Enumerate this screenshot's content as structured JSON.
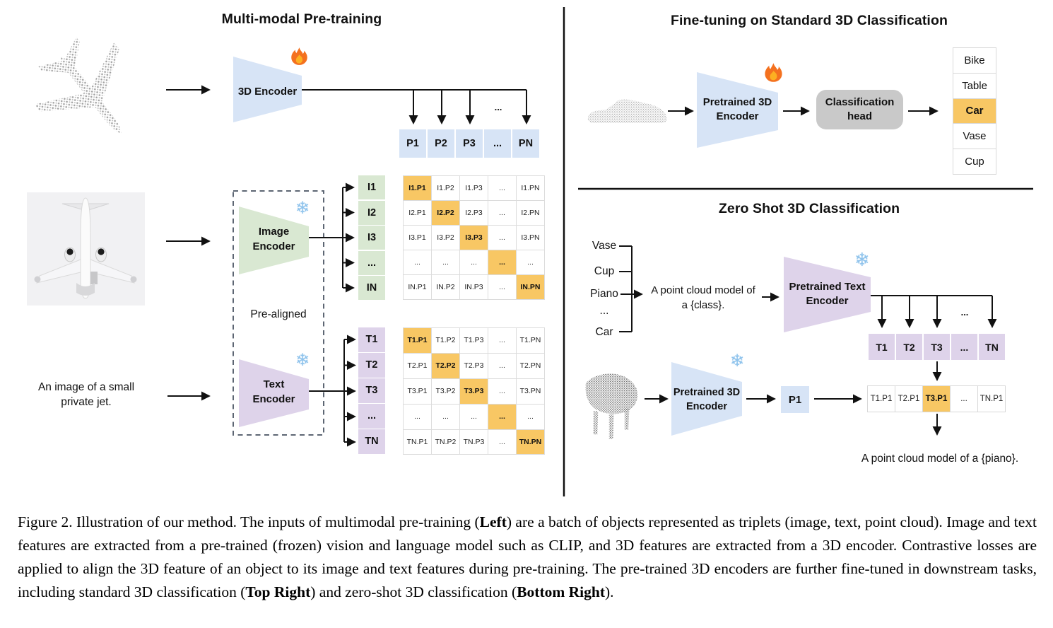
{
  "left_panel": {
    "title": "Multi-modal Pre-training",
    "encoder_3d": {
      "label": "3D Encoder"
    },
    "image_encoder": {
      "line1": "Image",
      "line2": "Encoder"
    },
    "text_encoder": {
      "line1": "Text",
      "line2": "Encoder"
    },
    "pre_aligned_label": "Pre-aligned",
    "text_input": {
      "line1": "An image of a small",
      "line2": "private jet."
    },
    "ellipsis": "...",
    "p_row": [
      "P1",
      "P2",
      "P3",
      "...",
      "PN"
    ],
    "image_rows": [
      "I1",
      "I2",
      "I3",
      "...",
      "IN"
    ],
    "text_rows": [
      "T1",
      "T2",
      "T3",
      "...",
      "TN"
    ],
    "image_matrix": [
      [
        "I1.P1",
        "I1.P2",
        "I1.P3",
        "...",
        "I1.PN"
      ],
      [
        "I2.P1",
        "I2.P2",
        "I2.P3",
        "...",
        "I2.PN"
      ],
      [
        "I3.P1",
        "I3.P2",
        "I3.P3",
        "...",
        "I3.PN"
      ],
      [
        "...",
        "...",
        "...",
        "...",
        "..."
      ],
      [
        "IN.P1",
        "IN.P2",
        "IN.P3",
        "...",
        "IN.PN"
      ]
    ],
    "text_matrix": [
      [
        "T1.P1",
        "T1.P2",
        "T1.P3",
        "...",
        "T1.PN"
      ],
      [
        "T2.P1",
        "T2.P2",
        "T2.P3",
        "...",
        "T2.PN"
      ],
      [
        "T3.P1",
        "T3.P2",
        "T3.P3",
        "...",
        "T3.PN"
      ],
      [
        "...",
        "...",
        "...",
        "...",
        "..."
      ],
      [
        "TN.P1",
        "TN.P2",
        "TN.P3",
        "...",
        "TN.PN"
      ]
    ]
  },
  "top_right_panel": {
    "title": "Fine-tuning on Standard 3D Classification",
    "encoder": {
      "line1": "Pretrained 3D",
      "line2": "Encoder"
    },
    "classification_head": {
      "line1": "Classification",
      "line2": "head"
    },
    "classes": [
      "Bike",
      "Table",
      "Car",
      "Vase",
      "Cup"
    ],
    "highlighted_class": "Car"
  },
  "bottom_right_panel": {
    "title": "Zero Shot 3D Classification",
    "class_prompts": [
      "Vase",
      "Cup",
      "Piano",
      "...",
      "Car"
    ],
    "prompt": {
      "line1": "A point cloud model of",
      "line2": "a {class}."
    },
    "text_encoder": {
      "line1": "Pretrained Text",
      "line2": "Encoder"
    },
    "encoder_3d": {
      "line1": "Pretrained 3D",
      "line2": "Encoder"
    },
    "p1_label": "P1",
    "ellipsis": "...",
    "t_row": [
      "T1",
      "T2",
      "T3",
      "...",
      "TN"
    ],
    "similarity_row": [
      "T1.P1",
      "T2.P1",
      "T3.P1",
      "...",
      "TN.P1"
    ],
    "highlighted_cell": "T3.P1",
    "result_text": "A point cloud model of a {piano}."
  },
  "icons": {
    "trainable": "fire-icon",
    "frozen": "snowflake-icon",
    "snowflake_glyph": "❄"
  },
  "colors": {
    "blue": "#d7e4f6",
    "green": "#d9e8d2",
    "purple": "#ded3ea",
    "highlight_orange": "#f8c764",
    "head_gray": "#c9c9c9"
  },
  "caption": {
    "segments": [
      {
        "text": "Figure 2. Illustration of our method. The inputs of multimodal pre-training (",
        "bold": false
      },
      {
        "text": "Left",
        "bold": true
      },
      {
        "text": ") are a batch of objects represented as triplets (image, text, point cloud). Image and text features are extracted from a pre-trained (frozen) vision and language model such as CLIP, and 3D features are extracted from a 3D encoder. Contrastive losses are applied to align the 3D feature of an object to its image and text features during pre-training. The pre-trained 3D encoders are further fine-tuned in downstream tasks, including standard 3D classification (",
        "bold": false
      },
      {
        "text": "Top Right",
        "bold": true
      },
      {
        "text": ") and zero-shot 3D classification (",
        "bold": false
      },
      {
        "text": "Bottom Right",
        "bold": true
      },
      {
        "text": ").",
        "bold": false
      }
    ]
  }
}
